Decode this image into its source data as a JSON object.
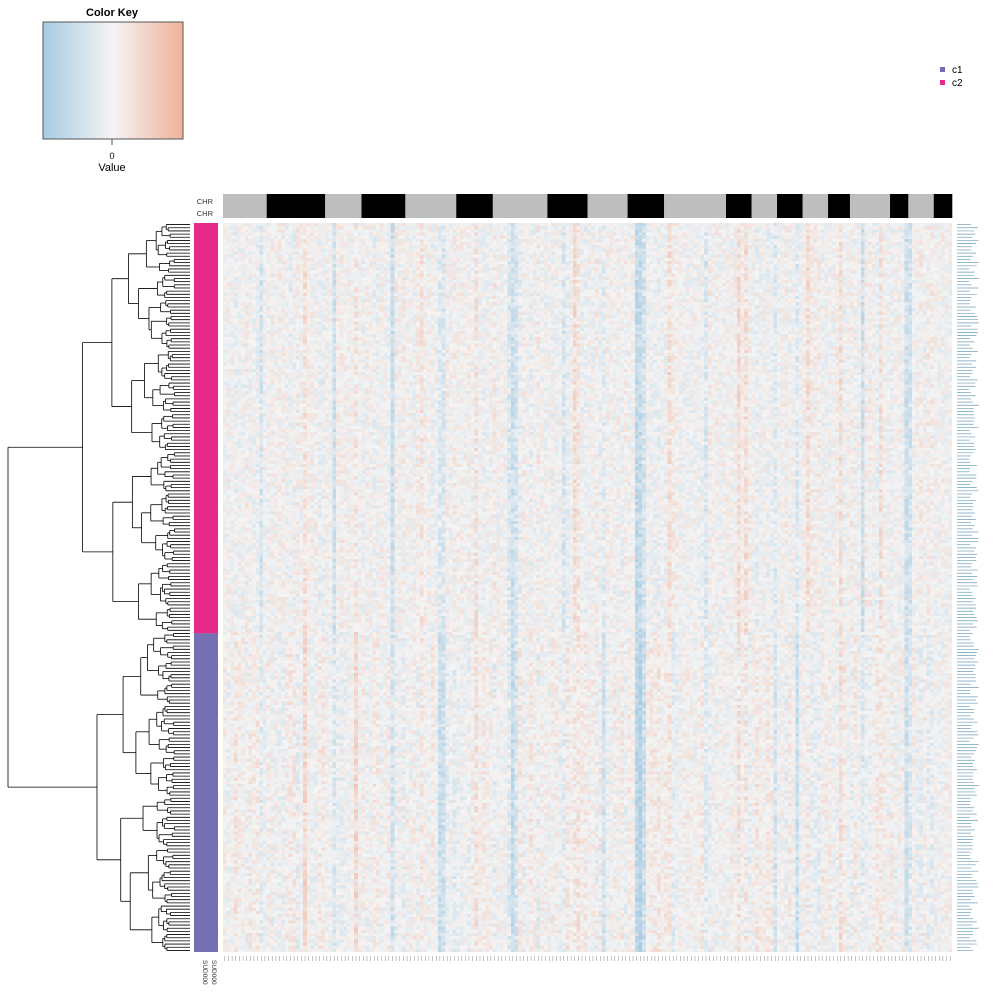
{
  "chart_data": {
    "type": "heatmap",
    "color_key": {
      "title": "Color Key",
      "xlabel": "Value",
      "tick_label": "0",
      "tick_value": 0,
      "low_color": "#a8cce3",
      "mid_color": "#f4f4f4",
      "high_color": "#efb29b"
    },
    "column_annotation": {
      "row_labels": [
        "CHR",
        "CHR"
      ],
      "colors": {
        "gray": "#bebebe",
        "black": "#000000"
      },
      "blocks": [
        {
          "color": "gray",
          "start": 0,
          "end": 12
        },
        {
          "color": "black",
          "start": 12,
          "end": 28
        },
        {
          "color": "gray",
          "start": 28,
          "end": 38
        },
        {
          "color": "black",
          "start": 38,
          "end": 50
        },
        {
          "color": "gray",
          "start": 50,
          "end": 64
        },
        {
          "color": "black",
          "start": 64,
          "end": 74
        },
        {
          "color": "gray",
          "start": 74,
          "end": 89
        },
        {
          "color": "black",
          "start": 89,
          "end": 100
        },
        {
          "color": "gray",
          "start": 100,
          "end": 111
        },
        {
          "color": "black",
          "start": 111,
          "end": 121
        },
        {
          "color": "gray",
          "start": 121,
          "end": 138
        },
        {
          "color": "black",
          "start": 138,
          "end": 145
        },
        {
          "color": "gray",
          "start": 145,
          "end": 152
        },
        {
          "color": "black",
          "start": 152,
          "end": 159
        },
        {
          "color": "gray",
          "start": 159,
          "end": 166
        },
        {
          "color": "black",
          "start": 166,
          "end": 172
        },
        {
          "color": "gray",
          "start": 172,
          "end": 183
        },
        {
          "color": "black",
          "start": 183,
          "end": 188
        },
        {
          "color": "gray",
          "start": 188,
          "end": 195
        },
        {
          "color": "black",
          "start": 195,
          "end": 200
        }
      ]
    },
    "row_groups": [
      {
        "name": "c2",
        "color": "#e7298a",
        "fraction": 0.563
      },
      {
        "name": "c1",
        "color": "#7570b3",
        "fraction": 0.437
      }
    ],
    "legend": {
      "placement": "top-right",
      "entries": [
        {
          "label": "c1",
          "color": "#7570b3"
        },
        {
          "label": "c2",
          "color": "#e7298a"
        }
      ]
    },
    "bottom_labels": [
      "SUD000",
      "SUD000"
    ],
    "n_columns": 200,
    "n_rows": 230,
    "column_bias": {
      "blue": [
        [
          10,
          0.35
        ],
        [
          30,
          0.45
        ],
        [
          46,
          0.55
        ],
        [
          59,
          0.4
        ],
        [
          60,
          0.4
        ],
        [
          78,
          0.35
        ],
        [
          79,
          0.6
        ],
        [
          80,
          0.4
        ],
        [
          93,
          0.3
        ],
        [
          104,
          0.3
        ],
        [
          113,
          0.75
        ],
        [
          114,
          0.8
        ],
        [
          115,
          0.5
        ],
        [
          132,
          0.3
        ],
        [
          151,
          0.35
        ],
        [
          157,
          0.4
        ],
        [
          175,
          0.45
        ],
        [
          187,
          0.55
        ],
        [
          188,
          0.4
        ]
      ],
      "red": [
        [
          22,
          0.35
        ],
        [
          36,
          0.3
        ],
        [
          54,
          0.25
        ],
        [
          69,
          0.3
        ],
        [
          96,
          0.3
        ],
        [
          97,
          0.25
        ],
        [
          122,
          0.3
        ],
        [
          141,
          0.35
        ],
        [
          143,
          0.3
        ],
        [
          160,
          0.3
        ],
        [
          169,
          0.35
        ],
        [
          180,
          0.25
        ]
      ]
    },
    "grid": false
  }
}
